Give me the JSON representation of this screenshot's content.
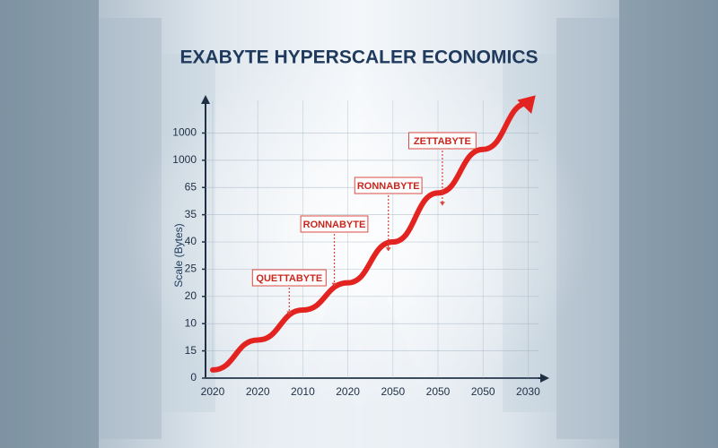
{
  "chart_data": {
    "type": "line",
    "title": "EXABYTE HYPERSCALER ECONOMICS",
    "y_label": "Scale (Bytes)",
    "categories": [
      "2020",
      "2020",
      "2010",
      "2020",
      "2050",
      "2050",
      "2050",
      "2030"
    ],
    "series": [
      {
        "name": "Scale",
        "color": "#e3231f",
        "values": [
          0.3,
          1.4,
          2.5,
          3.5,
          5.0,
          6.8,
          8.4,
          10.1
        ]
      }
    ],
    "ylim": [
      0,
      10.2
    ],
    "yticks": [
      0,
      {
        "value": 1,
        "label": "15"
      },
      {
        "value": 2,
        "label": "10"
      },
      {
        "value": 3,
        "label": "20"
      },
      {
        "value": 4,
        "label": "25"
      },
      {
        "value": 5,
        "label": "40"
      },
      {
        "value": 6,
        "label": "35"
      },
      {
        "value": 7,
        "label": "65"
      },
      {
        "value": 8,
        "label": "1000"
      },
      {
        "value": 9,
        "label": "1000"
      }
    ],
    "annotations": [
      {
        "text": "QUETTABYTE",
        "index": 2
      },
      {
        "text": "RONNABYTE",
        "index": 3
      },
      {
        "text": "RONNABYTE",
        "index": 4
      },
      {
        "text": "ZETTABYTE",
        "index": 5
      }
    ],
    "grid": true
  }
}
